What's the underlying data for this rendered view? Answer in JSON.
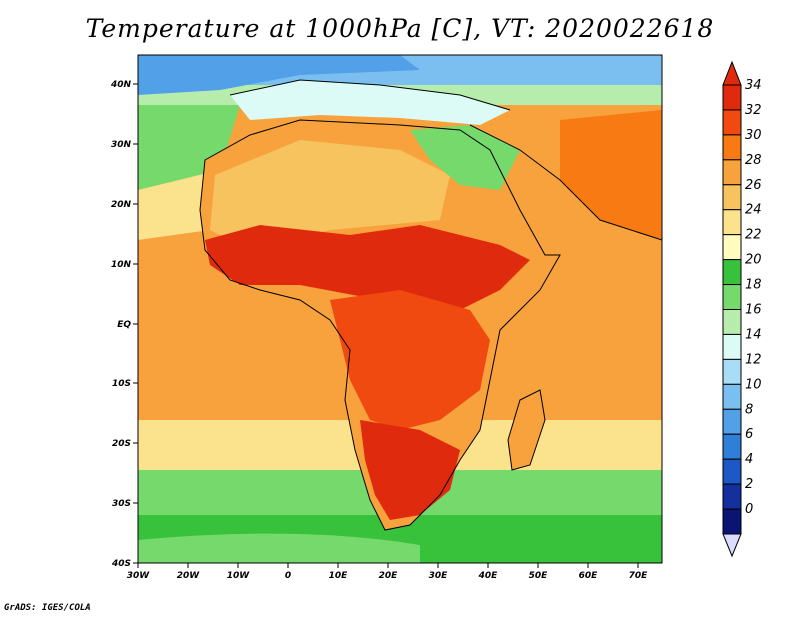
{
  "title": "Temperature at 1000hPa [C], VT: 2020022618",
  "credit": "GrADS: IGES/COLA",
  "map": {
    "lon_ticks": [
      "30W",
      "20W",
      "10W",
      "0",
      "10E",
      "20E",
      "30E",
      "40E",
      "50E",
      "60E",
      "70E"
    ],
    "lat_ticks": [
      "40N",
      "30N",
      "20N",
      "10N",
      "EQ",
      "10S",
      "20S",
      "30S",
      "40S"
    ]
  },
  "colorbar": {
    "labels": [
      "34",
      "32",
      "30",
      "28",
      "26",
      "24",
      "22",
      "20",
      "18",
      "16",
      "14",
      "12",
      "10",
      "8",
      "6",
      "4",
      "2",
      "0"
    ],
    "colors": [
      "#e02a0e",
      "#f04a10",
      "#f77a13",
      "#f7a23d",
      "#f7c35e",
      "#fbe38e",
      "#fffcbd",
      "#38c13a",
      "#76d96b",
      "#b6edac",
      "#dcfbf6",
      "#a9ddf6",
      "#7bbff0",
      "#51a0e8",
      "#2f7ed8",
      "#1d59c6",
      "#13309e",
      "#0a1573"
    ]
  }
}
